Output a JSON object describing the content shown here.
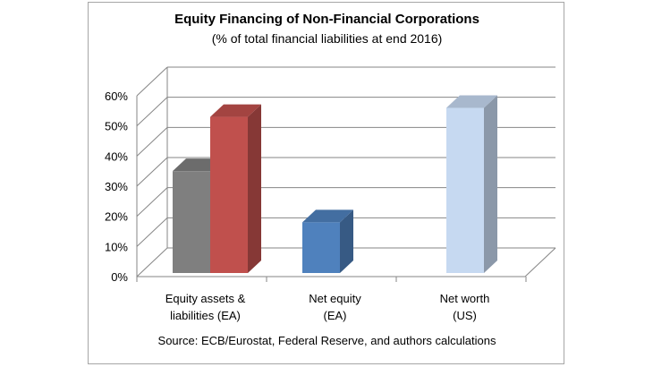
{
  "chart_data": {
    "type": "bar",
    "title": "Equity Financing of Non-Financial Corporations",
    "subtitle": "(% of total financial liabilities at end 2016)",
    "source": "Source: ECB/Eurostat, Federal Reserve, and authors calculations",
    "ylim": [
      0,
      60
    ],
    "yticks": [
      "0%",
      "10%",
      "20%",
      "30%",
      "40%",
      "50%",
      "60%"
    ],
    "grid": true,
    "categories": [
      {
        "lines": [
          "Equity assets &",
          "liabilities (EA)"
        ]
      },
      {
        "lines": [
          "Net equity",
          "(EA)"
        ]
      },
      {
        "lines": [
          "Net worth",
          "(US)"
        ]
      }
    ],
    "bars": [
      {
        "category": 0,
        "value": 35,
        "color": "#7f7f7f"
      },
      {
        "category": 0,
        "value": 53,
        "color": "#c0504d"
      },
      {
        "category": 1,
        "value": 18,
        "color": "#4f81bd"
      },
      {
        "category": 2,
        "value": 56,
        "color": "#c6d9f1"
      }
    ]
  }
}
